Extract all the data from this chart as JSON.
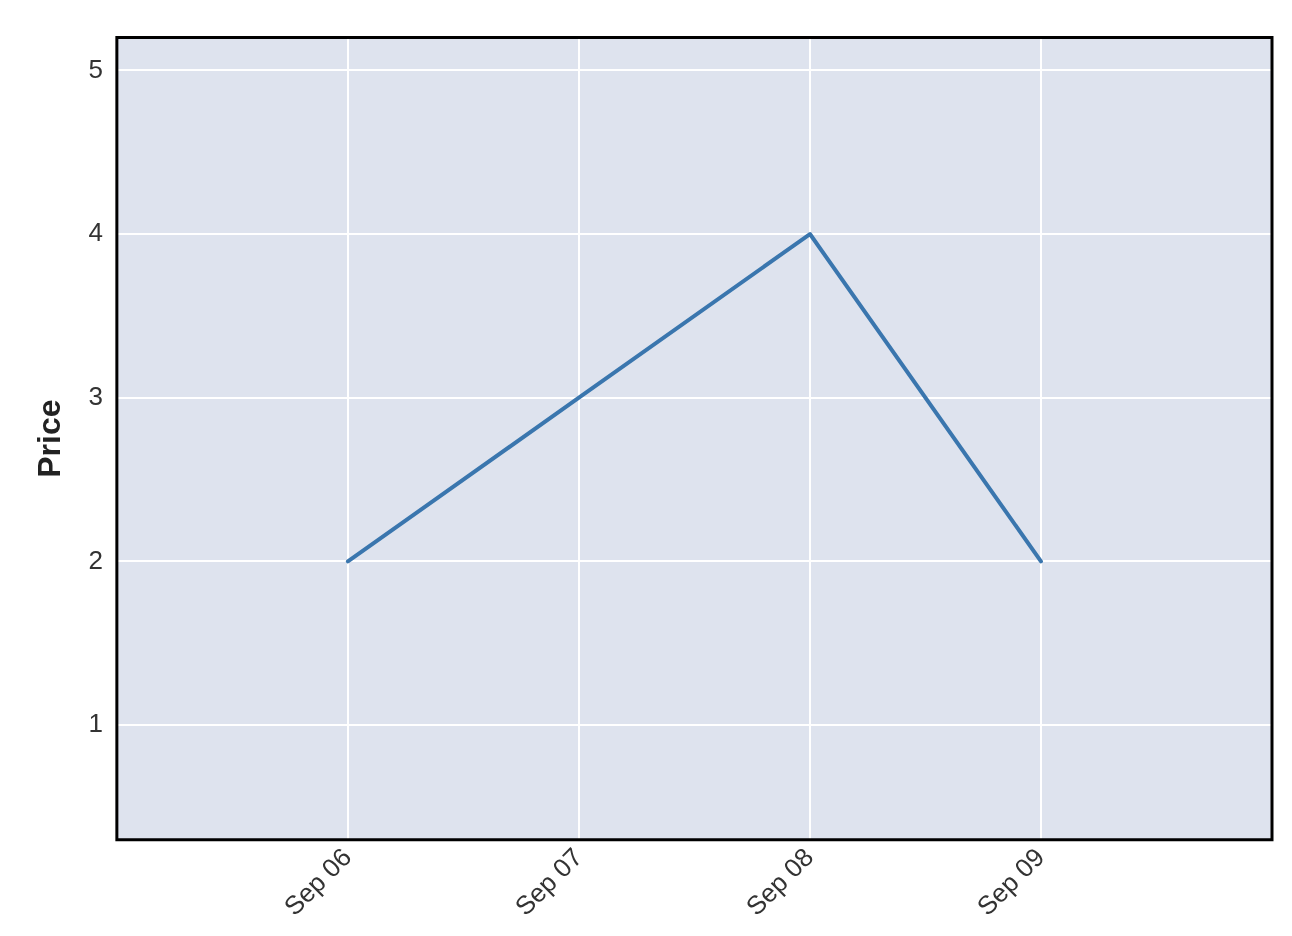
{
  "chart_data": {
    "type": "line",
    "ylabel": "Price",
    "x": [
      "--09-06",
      "--09-07",
      "--09-08",
      "--09-09"
    ],
    "series": [
      {
        "color": "#3a76ae",
        "values": [
          2,
          3,
          4,
          2
        ]
      }
    ],
    "xlim": [
      "--09-05",
      "--09-10"
    ],
    "xticks": [
      {
        "value": "--09-06",
        "label": "Sep 06"
      },
      {
        "value": "--09-07",
        "label": "Sep 07"
      },
      {
        "value": "--09-08",
        "label": "Sep 08"
      },
      {
        "value": "--09-09",
        "label": "Sep 09"
      }
    ],
    "ylim": [
      0.3,
      5.2
    ],
    "yticks": [
      1,
      2,
      3,
      4,
      5
    ],
    "grid": true,
    "line_style": "solid"
  }
}
